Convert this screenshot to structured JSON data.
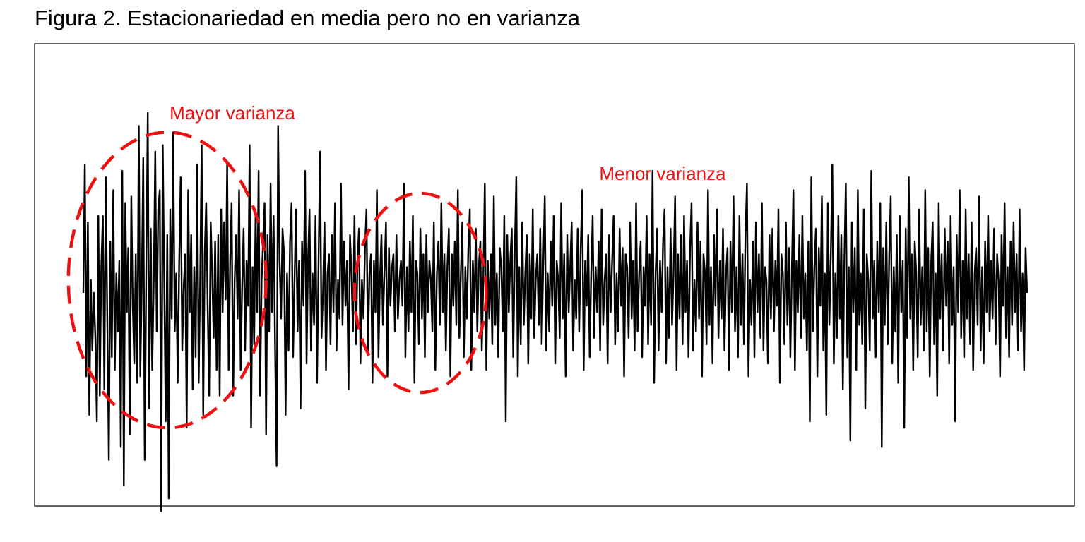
{
  "chart_data": {
    "type": "line",
    "title": "Figura 2. Estacionariedad en media pero no en varianza",
    "xlabel": "",
    "ylabel": "",
    "grid": false,
    "axes_visible": false,
    "line_color": "#000000",
    "annotation_color": "#ee1111",
    "series": [
      {
        "values": [
          0.0,
          2.0,
          -1.3,
          1.1,
          -1.9,
          0.2,
          -0.9,
          0.0,
          -0.7,
          -2.0,
          1.2,
          -1.6,
          0.4,
          1.2,
          -1.5,
          1.8,
          -0.4,
          -2.6,
          0.8,
          -1.0,
          1.6,
          -1.2,
          0.3,
          -0.6,
          0.5,
          -2.4,
          1.9,
          -3.0,
          1.4,
          -0.3,
          0.7,
          -2.2,
          1.5,
          -0.2,
          -1.1,
          0.6,
          -1.4,
          2.6,
          -1.3,
          0.1,
          2.1,
          -2.6,
          0.4,
          2.8,
          -1.8,
          1.0,
          -1.2,
          0.2,
          2.2,
          -0.6,
          1.3,
          1.6,
          -3.4,
          2.3,
          0.2,
          -2.0,
          0.9,
          -3.2,
          1.3,
          -0.4,
          2.5,
          -0.6,
          0.3,
          -1.4,
          0.5,
          1.8,
          -0.9,
          0.1,
          0.6,
          -2.1,
          1.6,
          -0.3,
          0.9,
          -1.5,
          0.4,
          -1.0,
          2.0,
          -1.4,
          0.2,
          2.3,
          -1.9,
          0.6,
          1.4,
          -0.2,
          -1.6,
          1.1,
          0.3,
          -0.7,
          0.8,
          -1.2,
          0.9,
          -1.6,
          1.3,
          -0.3,
          1.1,
          -0.1,
          2.0,
          -1.2,
          0.5,
          1.4,
          -1.6,
          0.2,
          0.9,
          -0.4,
          1.6,
          -1.2,
          0.1,
          1.0,
          -0.9,
          0.5,
          -0.2,
          2.3,
          -2.1,
          0.4,
          -0.8,
          1.3,
          -0.3,
          1.9,
          -1.6,
          0.2,
          0.8,
          1.4,
          -2.2,
          0.9,
          -0.6,
          1.7,
          -0.3,
          1.2,
          -0.8,
          -2.7,
          2.6,
          0.5,
          -0.4,
          1.0,
          0.6,
          -1.9,
          0.3,
          -0.9,
          0.8,
          1.4,
          -1.0,
          0.2,
          1.3,
          -0.6,
          0.5,
          -1.8,
          0.8,
          -0.2,
          1.9,
          -1.1,
          0.5,
          1.3,
          -0.9,
          0.3,
          -0.5,
          1.2,
          -1.4,
          0.4,
          2.2,
          -0.7,
          0.0,
          1.1,
          -1.2,
          0.3,
          0.6,
          -0.8,
          0.9,
          -0.3,
          1.4,
          -0.9,
          0.2,
          -0.4,
          1.7,
          -0.5,
          0.8,
          -0.2,
          0.5,
          -1.5,
          0.9,
          0.3,
          -0.6,
          1.2,
          -0.8,
          0.5,
          1.0,
          -1.1,
          0.2,
          -0.4,
          0.7,
          1.3,
          -0.9,
          0.3,
          0.6,
          -1.4,
          0.5,
          -0.3,
          1.6,
          -1.0,
          0.2,
          0.9,
          -0.5,
          0.3,
          1.1,
          -1.3,
          0.7,
          -0.2,
          0.4,
          0.6,
          -0.6,
          0.9,
          -0.4,
          0.2,
          0.5,
          -0.2,
          1.7,
          -1.0,
          0.4,
          -0.6,
          0.8,
          -0.3,
          1.2,
          -1.4,
          0.5,
          0.3,
          -0.8,
          1.0,
          -0.4,
          0.6,
          -1.0,
          0.9,
          -0.3,
          0.5,
          0.2,
          -0.6,
          1.1,
          -1.2,
          0.3,
          0.8,
          -0.5,
          1.4,
          -0.3,
          0.6,
          -0.9,
          0.4,
          1.0,
          -1.3,
          0.6,
          -0.2,
          0.8,
          -0.5,
          1.6,
          -0.7,
          0.3,
          1.1,
          -1.0,
          0.4,
          -0.4,
          0.7,
          1.3,
          -1.2,
          0.5,
          -0.3,
          1.0,
          -0.6,
          0.4,
          0.8,
          -0.9,
          0.2,
          1.7,
          -1.2,
          0.5,
          -0.4,
          0.6,
          -0.8,
          1.5,
          -0.5,
          0.3,
          -1.0,
          0.7,
          0.4,
          -0.6,
          1.2,
          -2.0,
          0.9,
          -0.3,
          0.5,
          1.0,
          -1.0,
          0.6,
          1.8,
          -1.3,
          0.4,
          -0.8,
          1.1,
          -0.5,
          0.3,
          0.9,
          -1.1,
          0.6,
          -0.4,
          1.3,
          -0.7,
          0.2,
          0.6,
          -0.5,
          1.0,
          -0.8,
          0.4,
          1.5,
          -0.9,
          0.3,
          -0.6,
          0.8,
          -0.2,
          1.2,
          -1.1,
          0.5,
          0.2,
          -0.7,
          1.4,
          -0.4,
          0.6,
          -1.3,
          0.9,
          -0.3,
          0.4,
          1.1,
          -0.9,
          0.2,
          -0.4,
          1.0,
          -0.6,
          0.7,
          1.6,
          -1.2,
          0.5,
          -0.2,
          0.9,
          -1.0,
          0.3,
          1.2,
          -0.7,
          0.4,
          -0.3,
          0.8,
          -0.9,
          1.3,
          -0.5,
          0.2,
          0.6,
          -1.1,
          0.9,
          -0.3,
          0.5,
          1.2,
          -0.8,
          0.3,
          -0.6,
          1.0,
          -0.2,
          0.7,
          -1.3,
          0.6,
          0.4,
          -0.7,
          1.1,
          -0.4,
          0.5,
          -0.9,
          1.4,
          -0.6,
          0.3,
          0.8,
          -1.0,
          0.4,
          -0.2,
          1.2,
          -0.8,
          0.6,
          -0.5,
          1.9,
          -1.4,
          0.3,
          1.0,
          -0.9,
          0.5,
          -0.3,
          0.8,
          1.3,
          -1.1,
          0.4,
          -0.7,
          1.0,
          -0.5,
          0.3,
          1.5,
          -1.2,
          0.6,
          -0.4,
          0.9,
          -0.8,
          1.2,
          -0.3,
          0.5,
          -1.0,
          0.7,
          1.4,
          -0.9,
          0.2,
          -0.6,
          1.1,
          -0.4,
          0.8,
          -1.3,
          0.6,
          0.3,
          -0.8,
          1.6,
          -0.5,
          0.4,
          -1.1,
          0.9,
          -0.2,
          1.3,
          -0.7,
          0.5,
          -0.4,
          1.0,
          -0.9,
          0.3,
          0.7,
          -1.2,
          0.8,
          -0.3,
          1.5,
          -0.6,
          0.4,
          -1.0,
          1.2,
          -0.5,
          0.6,
          -0.8,
          0.9,
          1.7,
          -1.3,
          0.2,
          -0.5,
          0.8,
          -1.0,
          1.1,
          -0.3,
          0.6,
          -0.7,
          1.4,
          -0.9,
          0.4,
          0.2,
          -1.1,
          0.9,
          -0.4,
          1.0,
          -0.6,
          0.5,
          -0.2,
          1.3,
          -1.4,
          0.6,
          0.3,
          -0.8,
          1.1,
          -0.5,
          0.7,
          -1.0,
          0.4,
          1.6,
          -1.2,
          0.5,
          -0.3,
          0.9,
          -0.7,
          1.2,
          -0.4,
          0.3,
          -0.9,
          0.8,
          -2.0,
          1.8,
          -0.6,
          0.4,
          1.0,
          -1.3,
          0.7,
          -0.2,
          1.5,
          -0.9,
          0.3,
          -1.9,
          1.4,
          -0.5,
          0.6,
          2.0,
          -1.1,
          0.3,
          -0.7,
          1.2,
          -0.4,
          0.9,
          -1.5,
          0.5,
          1.7,
          -1.0,
          0.4,
          -2.3,
          1.1,
          -0.3,
          0.7,
          -1.2,
          1.6,
          -0.5,
          0.3,
          -0.8,
          1.3,
          -1.8,
          0.6,
          0.2,
          -0.9,
          1.9,
          -0.4,
          0.5,
          -1.0,
          0.8,
          -0.3,
          1.4,
          -2.4,
          0.7,
          -0.5,
          1.1,
          -0.8,
          0.6,
          1.5,
          -1.1,
          0.4,
          -0.6,
          0.9,
          -1.4,
          1.2,
          -0.3,
          0.5,
          -2.1,
          1.0,
          -0.7,
          1.8,
          -0.4,
          0.6,
          -1.2,
          0.8,
          0.3,
          -1.0,
          1.3,
          -0.5,
          0.4,
          -0.9,
          1.6,
          -0.6,
          0.7,
          -1.3,
          0.5,
          1.1,
          -0.8,
          0.3,
          -1.6,
          1.4,
          -0.4,
          0.6,
          -0.9,
          1.0,
          -0.2,
          0.8,
          -1.1,
          1.2,
          -0.5,
          0.4,
          -2.0,
          0.9,
          -0.3,
          1.6,
          -0.7,
          0.5,
          -1.0,
          1.3,
          -0.4,
          0.6,
          -0.8,
          1.1,
          -1.2,
          0.3,
          0.7,
          -0.5,
          1.5,
          -0.9,
          0.4,
          -1.1,
          0.8,
          -0.3,
          1.2,
          -0.6,
          0.5,
          -0.4,
          1.0,
          -0.8,
          0.6,
          0.2,
          -1.3,
          0.9,
          -0.2,
          1.4,
          -0.7,
          0.4,
          -1.0,
          0.8,
          -0.5,
          1.1,
          -0.3,
          0.6,
          -0.9,
          1.3,
          -0.6,
          0.3,
          -1.2,
          0.7,
          0.0
        ]
      }
    ],
    "annotations": [
      {
        "text": "Mayor varianza",
        "ellipse": {
          "x_center": 56,
          "x_halfwidth": 66,
          "y_center": 0.2,
          "y_halfheight": 2.3
        }
      },
      {
        "text": "Menor varianza",
        "ellipse": {
          "x_center": 225,
          "x_halfwidth": 44,
          "y_center": 0.0,
          "y_halfheight": 1.55
        }
      }
    ]
  }
}
